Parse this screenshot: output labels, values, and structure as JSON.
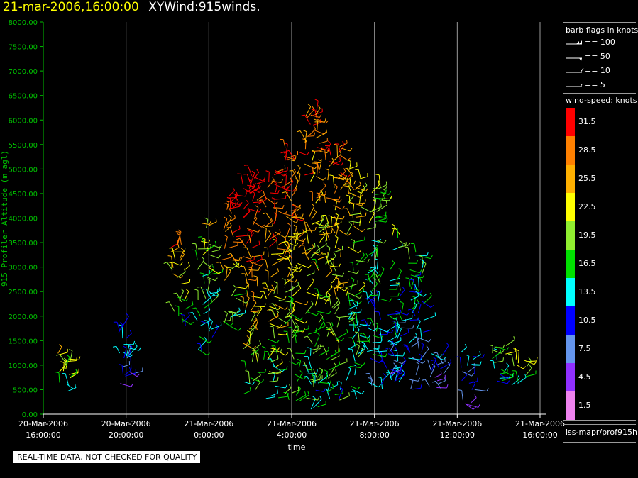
{
  "header": {
    "datetime": "21-mar-2006,16:00:00",
    "product": "XYWind:915winds."
  },
  "chart_data": {
    "type": "scatter",
    "ylabel": "915 Profiler Altitude (m agl)",
    "xlabel": "time",
    "ylim": [
      0,
      8000
    ],
    "yticks": [
      "0.00",
      "500.00",
      "1000.00",
      "1500.00",
      "2000.00",
      "2500.00",
      "3000.00",
      "3500.00",
      "4000.00",
      "4500.00",
      "5000.00",
      "5500.00",
      "6000.00",
      "6500.00",
      "7000.00",
      "7500.00",
      "8000.00"
    ],
    "xticks": [
      {
        "date": "20-Mar-2006",
        "time": "16:00:00"
      },
      {
        "date": "20-Mar-2006",
        "time": "20:00:00"
      },
      {
        "date": "21-Mar-2006",
        "time": "0:00:00"
      },
      {
        "date": "21-Mar-2006",
        "time": "4:00:00"
      },
      {
        "date": "21-Mar-2006",
        "time": "8:00:00"
      },
      {
        "date": "21-Mar-2006",
        "time": "12:00:00"
      },
      {
        "date": "21-Mar-2006",
        "time": "16:00:00"
      }
    ],
    "grid": "vertical at time ticks",
    "note": "wind barbs colored by wind speed (knots)",
    "clusters": [
      {
        "hour": -23.0,
        "alt_min": 350,
        "alt_max": 1400,
        "speed": 23
      },
      {
        "hour": -20.0,
        "alt_min": 500,
        "alt_max": 1800,
        "speed": 12
      },
      {
        "hour": -17.5,
        "alt_min": 1800,
        "alt_max": 3500,
        "speed": 24
      },
      {
        "hour": -16.2,
        "alt_min": 1200,
        "alt_max": 3900,
        "speed": 20
      },
      {
        "hour": -15.0,
        "alt_min": 1800,
        "alt_max": 4500,
        "speed": 30
      },
      {
        "hour": -14.0,
        "alt_min": 400,
        "alt_max": 5000,
        "speed": 31
      },
      {
        "hour": -13.0,
        "alt_min": 300,
        "alt_max": 5000,
        "speed": 29
      },
      {
        "hour": -12.0,
        "alt_min": 200,
        "alt_max": 5500,
        "speed": 27
      },
      {
        "hour": -11.0,
        "alt_min": 100,
        "alt_max": 6200,
        "speed": 26
      },
      {
        "hour": -10.0,
        "alt_min": 200,
        "alt_max": 5600,
        "speed": 26
      },
      {
        "hour": -9.0,
        "alt_min": 300,
        "alt_max": 5000,
        "speed": 22
      },
      {
        "hour": -8.0,
        "alt_min": 400,
        "alt_max": 4700,
        "speed": 18
      },
      {
        "hour": -7.0,
        "alt_min": 500,
        "alt_max": 3700,
        "speed": 16
      },
      {
        "hour": -6.0,
        "alt_min": 500,
        "alt_max": 3400,
        "speed": 15
      },
      {
        "hour": -5.0,
        "alt_min": 500,
        "alt_max": 1500,
        "speed": 12
      },
      {
        "hour": -3.5,
        "alt_min": 200,
        "alt_max": 1300,
        "speed": 11
      },
      {
        "hour": -2.0,
        "alt_min": 500,
        "alt_max": 1500,
        "speed": 19
      },
      {
        "hour": -1.0,
        "alt_min": 500,
        "alt_max": 1200,
        "speed": 21
      }
    ]
  },
  "legend": {
    "barb_title": "barb flags in knots",
    "barbs": [
      {
        "label": "== 100",
        "kind": "flag2"
      },
      {
        "label": "== 50",
        "kind": "flag"
      },
      {
        "label": "== 10",
        "kind": "full"
      },
      {
        "label": "== 5",
        "kind": "half"
      }
    ],
    "speed_title": "wind-speed: knots",
    "colorbar": [
      {
        "label": "31.5",
        "color": "#ff0000"
      },
      {
        "label": "28.5",
        "color": "#ff8000"
      },
      {
        "label": "25.5",
        "color": "#ffb000"
      },
      {
        "label": "22.5",
        "color": "#ffff00"
      },
      {
        "label": "19.5",
        "color": "#90ee30"
      },
      {
        "label": "16.5",
        "color": "#00e000"
      },
      {
        "label": "13.5",
        "color": "#00ffff"
      },
      {
        "label": "10.5",
        "color": "#0000ff"
      },
      {
        "label": "7.5",
        "color": "#6495ed"
      },
      {
        "label": "4.5",
        "color": "#9030ff"
      },
      {
        "label": "1.5",
        "color": "#ee82ee"
      }
    ],
    "source": "iss-mapr/prof915h"
  },
  "notice": "REAL-TIME DATA, NOT CHECKED FOR QUALITY",
  "colors": {
    "axis": "#00c000",
    "grid": "#9a9a9a"
  }
}
